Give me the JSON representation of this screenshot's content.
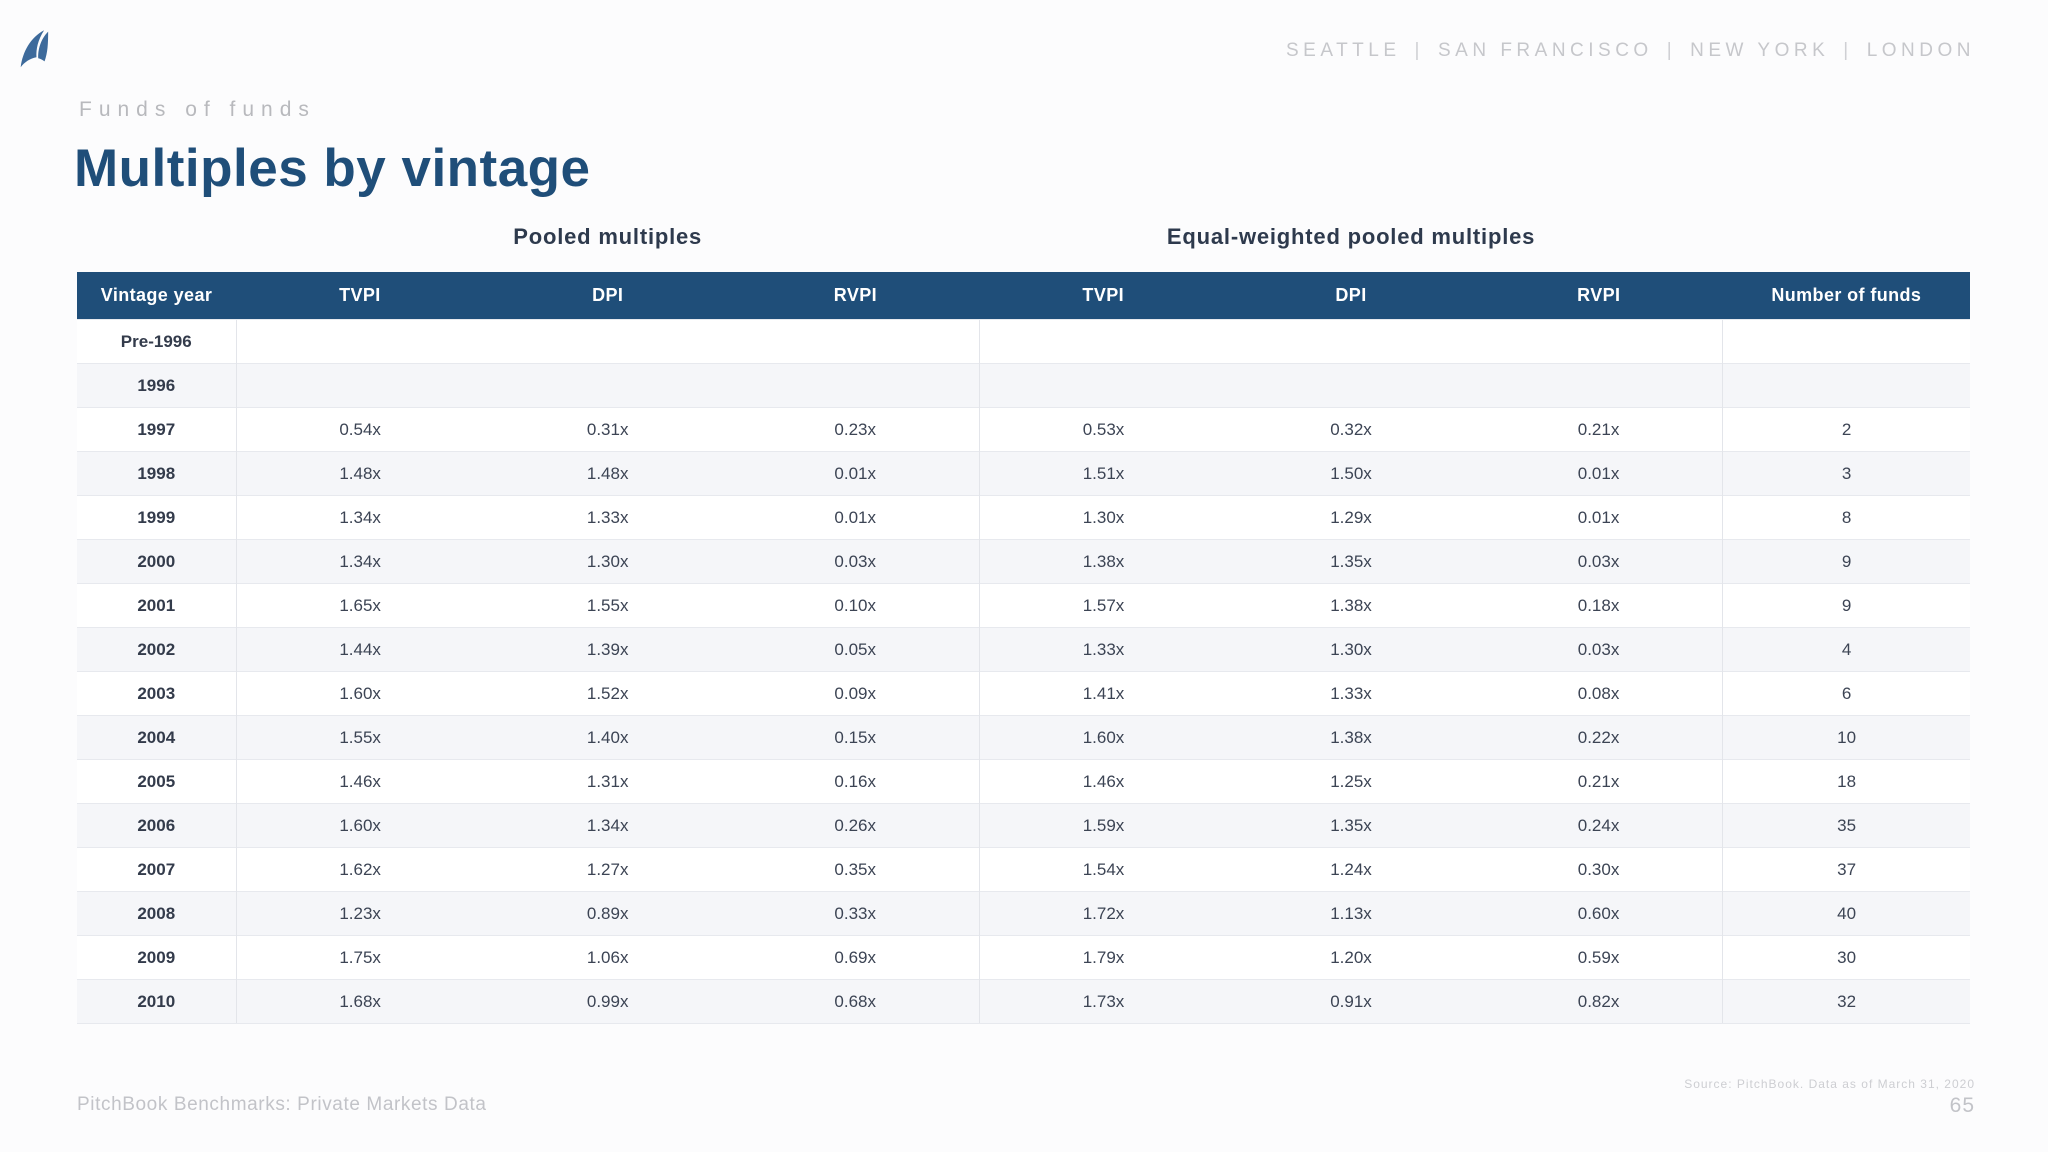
{
  "header": {
    "logo": "pitchbook-logo",
    "cities": [
      "SEATTLE",
      "SAN FRANCISCO",
      "NEW YORK",
      "LONDON"
    ],
    "separator": "|"
  },
  "eyebrow": "Funds of funds",
  "title": "Multiples by vintage",
  "table": {
    "section_headers": {
      "pooled": "Pooled multiples",
      "equal_weighted": "Equal-weighted pooled multiples"
    },
    "columns": [
      "Vintage year",
      "TVPI",
      "DPI",
      "RVPI",
      "TVPI",
      "DPI",
      "RVPI",
      "Number of funds"
    ],
    "rows": [
      {
        "vintage": "Pre-1996",
        "cells": [
          "",
          "",
          "",
          "",
          "",
          "",
          ""
        ]
      },
      {
        "vintage": "1996",
        "cells": [
          "",
          "",
          "",
          "",
          "",
          "",
          ""
        ]
      },
      {
        "vintage": "1997",
        "cells": [
          "0.54x",
          "0.31x",
          "0.23x",
          "0.53x",
          "0.32x",
          "0.21x",
          "2"
        ]
      },
      {
        "vintage": "1998",
        "cells": [
          "1.48x",
          "1.48x",
          "0.01x",
          "1.51x",
          "1.50x",
          "0.01x",
          "3"
        ]
      },
      {
        "vintage": "1999",
        "cells": [
          "1.34x",
          "1.33x",
          "0.01x",
          "1.30x",
          "1.29x",
          "0.01x",
          "8"
        ]
      },
      {
        "vintage": "2000",
        "cells": [
          "1.34x",
          "1.30x",
          "0.03x",
          "1.38x",
          "1.35x",
          "0.03x",
          "9"
        ]
      },
      {
        "vintage": "2001",
        "cells": [
          "1.65x",
          "1.55x",
          "0.10x",
          "1.57x",
          "1.38x",
          "0.18x",
          "9"
        ]
      },
      {
        "vintage": "2002",
        "cells": [
          "1.44x",
          "1.39x",
          "0.05x",
          "1.33x",
          "1.30x",
          "0.03x",
          "4"
        ]
      },
      {
        "vintage": "2003",
        "cells": [
          "1.60x",
          "1.52x",
          "0.09x",
          "1.41x",
          "1.33x",
          "0.08x",
          "6"
        ]
      },
      {
        "vintage": "2004",
        "cells": [
          "1.55x",
          "1.40x",
          "0.15x",
          "1.60x",
          "1.38x",
          "0.22x",
          "10"
        ]
      },
      {
        "vintage": "2005",
        "cells": [
          "1.46x",
          "1.31x",
          "0.16x",
          "1.46x",
          "1.25x",
          "0.21x",
          "18"
        ]
      },
      {
        "vintage": "2006",
        "cells": [
          "1.60x",
          "1.34x",
          "0.26x",
          "1.59x",
          "1.35x",
          "0.24x",
          "35"
        ]
      },
      {
        "vintage": "2007",
        "cells": [
          "1.62x",
          "1.27x",
          "0.35x",
          "1.54x",
          "1.24x",
          "0.30x",
          "37"
        ]
      },
      {
        "vintage": "2008",
        "cells": [
          "1.23x",
          "0.89x",
          "0.33x",
          "1.72x",
          "1.13x",
          "0.60x",
          "40"
        ]
      },
      {
        "vintage": "2009",
        "cells": [
          "1.75x",
          "1.06x",
          "0.69x",
          "1.79x",
          "1.20x",
          "0.59x",
          "30"
        ]
      },
      {
        "vintage": "2010",
        "cells": [
          "1.68x",
          "0.99x",
          "0.68x",
          "1.73x",
          "0.91x",
          "0.82x",
          "32"
        ]
      }
    ]
  },
  "footer": {
    "left": "PitchBook Benchmarks: Private Markets Data",
    "source": "Source: PitchBook. Data as of March 31, 2020",
    "page": "65"
  },
  "colors": {
    "header_bar": "#1F4E79",
    "title": "#1F4E79",
    "logo_blue": "#3D6A9B",
    "alt_row": "#F5F6F9",
    "muted_gray": "#C2C3C8"
  }
}
